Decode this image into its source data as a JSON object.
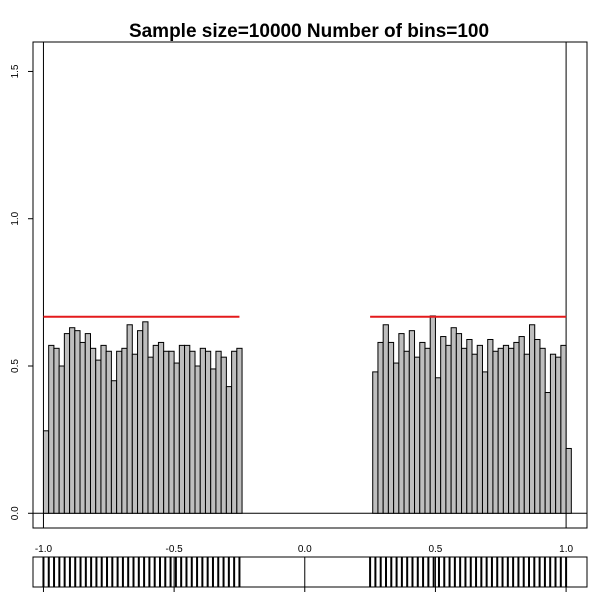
{
  "chart_data": {
    "type": "bar",
    "title": "Sample size=10000 Number of bins=100",
    "xlabel": "",
    "ylabel": "",
    "xlim": [
      -1.04,
      1.08
    ],
    "ylim": [
      -0.05,
      1.6
    ],
    "x_ticks": [
      "-1.0",
      "-0.5",
      "0.0",
      "0.5",
      "1.0"
    ],
    "x_tick_values": [
      -1.0,
      -0.5,
      0.0,
      0.5,
      1.0
    ],
    "y_ticks": [
      "0.0",
      "0.5",
      "1.0",
      "1.5"
    ],
    "y_tick_values": [
      0.0,
      0.5,
      1.0,
      1.5
    ],
    "bin_width": 0.02,
    "bins": [
      {
        "x0": -1.0,
        "density": 0.28
      },
      {
        "x0": -0.98,
        "density": 0.57
      },
      {
        "x0": -0.96,
        "density": 0.56
      },
      {
        "x0": -0.94,
        "density": 0.5
      },
      {
        "x0": -0.92,
        "density": 0.61
      },
      {
        "x0": -0.9,
        "density": 0.63
      },
      {
        "x0": -0.88,
        "density": 0.62
      },
      {
        "x0": -0.86,
        "density": 0.58
      },
      {
        "x0": -0.84,
        "density": 0.61
      },
      {
        "x0": -0.82,
        "density": 0.56
      },
      {
        "x0": -0.8,
        "density": 0.52
      },
      {
        "x0": -0.78,
        "density": 0.57
      },
      {
        "x0": -0.76,
        "density": 0.55
      },
      {
        "x0": -0.74,
        "density": 0.45
      },
      {
        "x0": -0.72,
        "density": 0.55
      },
      {
        "x0": -0.7,
        "density": 0.56
      },
      {
        "x0": -0.68,
        "density": 0.64
      },
      {
        "x0": -0.66,
        "density": 0.54
      },
      {
        "x0": -0.64,
        "density": 0.62
      },
      {
        "x0": -0.62,
        "density": 0.65
      },
      {
        "x0": -0.6,
        "density": 0.53
      },
      {
        "x0": -0.58,
        "density": 0.57
      },
      {
        "x0": -0.56,
        "density": 0.58
      },
      {
        "x0": -0.54,
        "density": 0.55
      },
      {
        "x0": -0.52,
        "density": 0.55
      },
      {
        "x0": -0.5,
        "density": 0.51
      },
      {
        "x0": -0.48,
        "density": 0.57
      },
      {
        "x0": -0.46,
        "density": 0.57
      },
      {
        "x0": -0.44,
        "density": 0.55
      },
      {
        "x0": -0.42,
        "density": 0.5
      },
      {
        "x0": -0.4,
        "density": 0.56
      },
      {
        "x0": -0.38,
        "density": 0.55
      },
      {
        "x0": -0.36,
        "density": 0.49
      },
      {
        "x0": -0.34,
        "density": 0.55
      },
      {
        "x0": -0.32,
        "density": 0.53
      },
      {
        "x0": -0.3,
        "density": 0.43
      },
      {
        "x0": -0.28,
        "density": 0.55
      },
      {
        "x0": -0.26,
        "density": 0.56
      },
      {
        "x0": 0.26,
        "density": 0.48
      },
      {
        "x0": 0.28,
        "density": 0.58
      },
      {
        "x0": 0.3,
        "density": 0.64
      },
      {
        "x0": 0.32,
        "density": 0.58
      },
      {
        "x0": 0.34,
        "density": 0.51
      },
      {
        "x0": 0.36,
        "density": 0.61
      },
      {
        "x0": 0.38,
        "density": 0.55
      },
      {
        "x0": 0.4,
        "density": 0.62
      },
      {
        "x0": 0.42,
        "density": 0.53
      },
      {
        "x0": 0.44,
        "density": 0.58
      },
      {
        "x0": 0.46,
        "density": 0.56
      },
      {
        "x0": 0.48,
        "density": 0.67
      },
      {
        "x0": 0.5,
        "density": 0.46
      },
      {
        "x0": 0.52,
        "density": 0.6
      },
      {
        "x0": 0.54,
        "density": 0.57
      },
      {
        "x0": 0.56,
        "density": 0.63
      },
      {
        "x0": 0.58,
        "density": 0.61
      },
      {
        "x0": 0.6,
        "density": 0.56
      },
      {
        "x0": 0.62,
        "density": 0.59
      },
      {
        "x0": 0.64,
        "density": 0.54
      },
      {
        "x0": 0.66,
        "density": 0.57
      },
      {
        "x0": 0.68,
        "density": 0.48
      },
      {
        "x0": 0.7,
        "density": 0.59
      },
      {
        "x0": 0.72,
        "density": 0.55
      },
      {
        "x0": 0.74,
        "density": 0.56
      },
      {
        "x0": 0.76,
        "density": 0.57
      },
      {
        "x0": 0.78,
        "density": 0.56
      },
      {
        "x0": 0.8,
        "density": 0.58
      },
      {
        "x0": 0.82,
        "density": 0.6
      },
      {
        "x0": 0.84,
        "density": 0.54
      },
      {
        "x0": 0.86,
        "density": 0.64
      },
      {
        "x0": 0.88,
        "density": 0.59
      },
      {
        "x0": 0.9,
        "density": 0.56
      },
      {
        "x0": 0.92,
        "density": 0.41
      },
      {
        "x0": 0.94,
        "density": 0.54
      },
      {
        "x0": 0.96,
        "density": 0.53
      },
      {
        "x0": 0.98,
        "density": 0.57
      },
      {
        "x0": 1.0,
        "density": 0.22
      }
    ],
    "reference_lines": [
      {
        "x0": -1.0,
        "x1": -0.25,
        "y": 0.667
      },
      {
        "x0": 0.25,
        "x1": 1.0,
        "y": 0.667
      }
    ],
    "vertical_lines": [
      -1.0,
      1.0
    ],
    "rug_intervals": [
      [
        -1.0,
        -0.25
      ],
      [
        0.25,
        1.0
      ]
    ],
    "rug_tick_count": 76,
    "colors": {
      "bar_fill": "#bebebe",
      "bar_stroke": "#000000",
      "reference_line": "#e41a1c",
      "axis": "#000000",
      "background": "#ffffff"
    },
    "grid": false,
    "legend": "none"
  }
}
